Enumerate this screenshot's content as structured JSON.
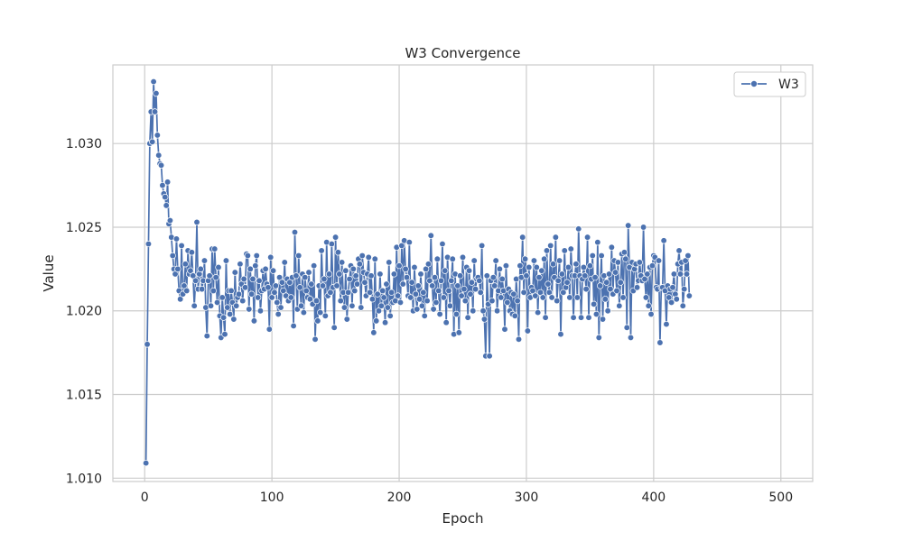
{
  "chart_data": {
    "type": "line",
    "title": "W3 Convergence",
    "xlabel": "Epoch",
    "ylabel": "Value",
    "xlim": [
      -25,
      525
    ],
    "ylim": [
      1.0098,
      1.0347
    ],
    "x_ticks": [
      0,
      100,
      200,
      300,
      400,
      500
    ],
    "x_tick_labels": [
      "0",
      "100",
      "200",
      "300",
      "400",
      "500"
    ],
    "y_ticks": [
      1.01,
      1.015,
      1.02,
      1.025,
      1.03
    ],
    "y_tick_labels": [
      "1.010",
      "1.015",
      "1.020",
      "1.025",
      "1.030"
    ],
    "grid": true,
    "legend": {
      "position": "upper-right",
      "entries": [
        "W3"
      ]
    },
    "colors": {
      "series": "#4c72b0",
      "grid": "#cccccc",
      "frame": "#cccccc"
    },
    "series": [
      {
        "name": "W3",
        "marker": "circle",
        "x_start": 1,
        "x_step": 1,
        "values": [
          1.0109,
          1.018,
          1.024,
          1.03,
          1.0319,
          1.0301,
          1.0337,
          1.0319,
          1.033,
          1.0305,
          1.0293,
          1.0288,
          1.0287,
          1.0275,
          1.027,
          1.0268,
          1.0263,
          1.0277,
          1.0252,
          1.0254,
          1.0244,
          1.0233,
          1.0225,
          1.0222,
          1.0243,
          1.0225,
          1.0212,
          1.0207,
          1.0239,
          1.021,
          1.0215,
          1.0228,
          1.0212,
          1.0236,
          1.0222,
          1.0224,
          1.0235,
          1.0221,
          1.0203,
          1.0218,
          1.0253,
          1.0213,
          1.0222,
          1.0225,
          1.0213,
          1.0218,
          1.023,
          1.0202,
          1.0185,
          1.0218,
          1.0221,
          1.0203,
          1.0237,
          1.0212,
          1.0237,
          1.022,
          1.0205,
          1.0226,
          1.0197,
          1.0184,
          1.0208,
          1.0196,
          1.0186,
          1.023,
          1.0202,
          1.0212,
          1.0198,
          1.0212,
          1.0205,
          1.0195,
          1.0223,
          1.0203,
          1.0208,
          1.021,
          1.0228,
          1.0216,
          1.0206,
          1.0219,
          1.0214,
          1.0234,
          1.0233,
          1.0201,
          1.0225,
          1.021,
          1.0219,
          1.0194,
          1.0227,
          1.0233,
          1.0208,
          1.0218,
          1.02,
          1.0212,
          1.0224,
          1.0213,
          1.0225,
          1.0216,
          1.0214,
          1.0189,
          1.0232,
          1.0208,
          1.0224,
          1.0211,
          1.0215,
          1.0205,
          1.0198,
          1.022,
          1.0202,
          1.0217,
          1.0212,
          1.0229,
          1.0209,
          1.0219,
          1.0206,
          1.0217,
          1.0208,
          1.022,
          1.0191,
          1.0247,
          1.0221,
          1.0201,
          1.0233,
          1.0214,
          1.0203,
          1.0222,
          1.0199,
          1.022,
          1.0212,
          1.0208,
          1.0223,
          1.0207,
          1.0216,
          1.0204,
          1.0227,
          1.0183,
          1.0206,
          1.0194,
          1.0215,
          1.0199,
          1.0236,
          1.0215,
          1.0219,
          1.0197,
          1.0241,
          1.0209,
          1.0222,
          1.0211,
          1.024,
          1.0214,
          1.019,
          1.0244,
          1.0215,
          1.0235,
          1.0222,
          1.0206,
          1.0229,
          1.0211,
          1.0202,
          1.0224,
          1.0195,
          1.0211,
          1.0219,
          1.0227,
          1.0203,
          1.0225,
          1.0212,
          1.0221,
          1.0216,
          1.0231,
          1.0228,
          1.0202,
          1.0233,
          1.0223,
          1.0217,
          1.0209,
          1.0222,
          1.0232,
          1.0211,
          1.0221,
          1.0207,
          1.0187,
          1.0231,
          1.0194,
          1.021,
          1.02,
          1.0222,
          1.0203,
          1.0212,
          1.0208,
          1.0193,
          1.0216,
          1.0202,
          1.0229,
          1.0197,
          1.0211,
          1.0205,
          1.0222,
          1.0206,
          1.0238,
          1.0209,
          1.0227,
          1.0205,
          1.0239,
          1.0216,
          1.0242,
          1.0225,
          1.022,
          1.0209,
          1.0241,
          1.0208,
          1.0217,
          1.02,
          1.0226,
          1.021,
          1.0201,
          1.0215,
          1.0207,
          1.0222,
          1.0203,
          1.0211,
          1.0197,
          1.0225,
          1.0206,
          1.0228,
          1.0218,
          1.0245,
          1.0215,
          1.0201,
          1.022,
          1.0205,
          1.0231,
          1.0212,
          1.0198,
          1.0218,
          1.024,
          1.0208,
          1.0224,
          1.0193,
          1.0232,
          1.0212,
          1.0203,
          1.0218,
          1.0231,
          1.0186,
          1.0222,
          1.0198,
          1.0215,
          1.0187,
          1.0221,
          1.0209,
          1.0232,
          1.0213,
          1.0206,
          1.0226,
          1.0196,
          1.0224,
          1.021,
          1.0217,
          1.02,
          1.023,
          1.0213,
          1.0219,
          1.022,
          1.0218,
          1.0211,
          1.0239,
          1.02,
          1.0195,
          1.0173,
          1.0221,
          1.0204,
          1.0173,
          1.0218,
          1.0206,
          1.022,
          1.0215,
          1.023,
          1.02,
          1.0212,
          1.0225,
          1.0208,
          1.0219,
          1.0212,
          1.0189,
          1.0227,
          1.0205,
          1.0213,
          1.02,
          1.0211,
          1.0198,
          1.021,
          1.0197,
          1.0219,
          1.0206,
          1.0183,
          1.0227,
          1.022,
          1.0244,
          1.0211,
          1.0231,
          1.0221,
          1.0188,
          1.0226,
          1.0208,
          1.0214,
          1.0212,
          1.023,
          1.0209,
          1.0226,
          1.0199,
          1.022,
          1.0211,
          1.0224,
          1.0208,
          1.0231,
          1.0196,
          1.0236,
          1.0216,
          1.0211,
          1.0239,
          1.0208,
          1.0228,
          1.022,
          1.0244,
          1.0206,
          1.0218,
          1.023,
          1.0186,
          1.0222,
          1.0211,
          1.0236,
          1.0214,
          1.0217,
          1.0226,
          1.0208,
          1.0237,
          1.0221,
          1.0196,
          1.0221,
          1.0228,
          1.0208,
          1.0249,
          1.0221,
          1.0196,
          1.0219,
          1.0226,
          1.0221,
          1.0213,
          1.0244,
          1.0196,
          1.0227,
          1.0219,
          1.0233,
          1.0204,
          1.022,
          1.0198,
          1.0241,
          1.0184,
          1.0215,
          1.0233,
          1.0195,
          1.0221,
          1.0207,
          1.0217,
          1.02,
          1.0222,
          1.0213,
          1.0238,
          1.021,
          1.023,
          1.0223,
          1.0212,
          1.0229,
          1.0203,
          1.0217,
          1.0234,
          1.0208,
          1.0235,
          1.0231,
          1.019,
          1.0251,
          1.0226,
          1.0184,
          1.0229,
          1.0212,
          1.0225,
          1.0228,
          1.0214,
          1.0218,
          1.0229,
          1.0221,
          1.0218,
          1.025,
          1.0219,
          1.0208,
          1.0222,
          1.0203,
          1.0226,
          1.0198,
          1.0227,
          1.0233,
          1.0232,
          1.0214,
          1.0213,
          1.023,
          1.0181,
          1.0214,
          1.0214,
          1.0242,
          1.0212,
          1.0192,
          1.0215,
          1.0208,
          1.0213,
          1.0205,
          1.0214,
          1.0222,
          1.021,
          1.0207,
          1.0228,
          1.0236,
          1.0222,
          1.0229,
          1.0203,
          1.0213,
          1.023,
          1.0222,
          1.0233,
          1.0209
        ]
      }
    ]
  }
}
